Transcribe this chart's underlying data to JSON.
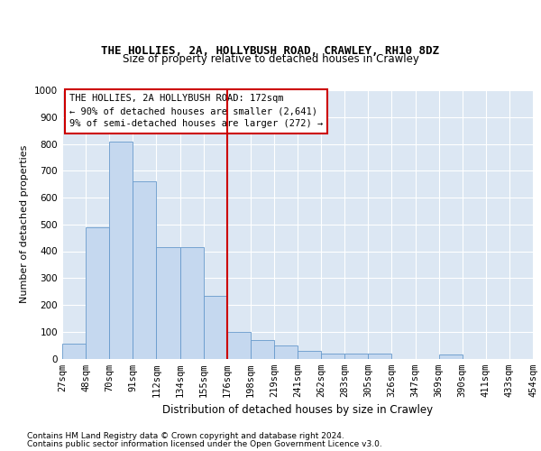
{
  "title1": "THE HOLLIES, 2A, HOLLYBUSH ROAD, CRAWLEY, RH10 8DZ",
  "title2": "Size of property relative to detached houses in Crawley",
  "xlabel": "Distribution of detached houses by size in Crawley",
  "ylabel": "Number of detached properties",
  "footer1": "Contains HM Land Registry data © Crown copyright and database right 2024.",
  "footer2": "Contains public sector information licensed under the Open Government Licence v3.0.",
  "bin_labels": [
    "27sqm",
    "48sqm",
    "70sqm",
    "91sqm",
    "112sqm",
    "134sqm",
    "155sqm",
    "176sqm",
    "198sqm",
    "219sqm",
    "241sqm",
    "262sqm",
    "283sqm",
    "305sqm",
    "326sqm",
    "347sqm",
    "369sqm",
    "390sqm",
    "411sqm",
    "433sqm",
    "454sqm"
  ],
  "heights": [
    55,
    490,
    810,
    660,
    415,
    415,
    235,
    100,
    70,
    50,
    30,
    20,
    20,
    20,
    0,
    0,
    15,
    0,
    0,
    0
  ],
  "vline_pos": 7,
  "bar_color": "#c5d8ef",
  "bar_edge_color": "#6699cc",
  "vline_color": "#cc0000",
  "annotation_text": "THE HOLLIES, 2A HOLLYBUSH ROAD: 172sqm\n← 90% of detached houses are smaller (2,641)\n9% of semi-detached houses are larger (272) →",
  "annotation_box_facecolor": "#ffffff",
  "annotation_box_edgecolor": "#cc0000",
  "ylim": [
    0,
    1000
  ],
  "yticks": [
    0,
    100,
    200,
    300,
    400,
    500,
    600,
    700,
    800,
    900,
    1000
  ],
  "plot_bg": "#dce7f3",
  "fig_bg": "#ffffff",
  "title1_fontsize": 9,
  "title2_fontsize": 8.5,
  "ylabel_fontsize": 8,
  "xlabel_fontsize": 8.5,
  "tick_fontsize": 7.5,
  "footer_fontsize": 6.5,
  "ann_fontsize": 7.5
}
